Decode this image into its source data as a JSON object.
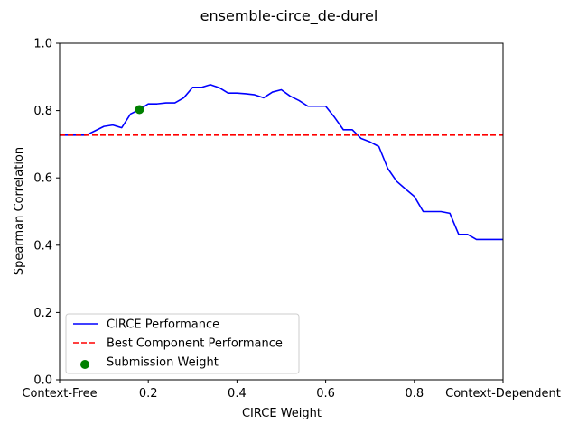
{
  "chart_data": {
    "type": "line",
    "title": "ensemble-circe_de-durel",
    "xlabel": "CIRCE Weight",
    "ylabel": "Spearman Correlation",
    "xlim": [
      0,
      1
    ],
    "ylim": [
      0,
      1
    ],
    "x_ticks": [
      {
        "value": 0,
        "label": "Context-Free"
      },
      {
        "value": 0.2,
        "label": "0.2"
      },
      {
        "value": 0.4,
        "label": "0.4"
      },
      {
        "value": 0.6,
        "label": "0.6"
      },
      {
        "value": 0.8,
        "label": "0.8"
      },
      {
        "value": 1.0,
        "label": "Context-Dependent"
      }
    ],
    "y_ticks": [
      {
        "value": 0,
        "label": "0.0"
      },
      {
        "value": 0.2,
        "label": "0.2"
      },
      {
        "value": 0.4,
        "label": "0.4"
      },
      {
        "value": 0.6,
        "label": "0.6"
      },
      {
        "value": 0.8,
        "label": "0.8"
      },
      {
        "value": 1.0,
        "label": "1.0"
      }
    ],
    "grid": false,
    "legend_position": "lower-left",
    "series": [
      {
        "name": "CIRCE Performance",
        "style": "line",
        "color": "#0000ff",
        "x": [
          0,
          0.02,
          0.04,
          0.06,
          0.08,
          0.1,
          0.12,
          0.14,
          0.16,
          0.18,
          0.2,
          0.22,
          0.24,
          0.26,
          0.28,
          0.3,
          0.32,
          0.34,
          0.36,
          0.38,
          0.4,
          0.42,
          0.44,
          0.46,
          0.48,
          0.5,
          0.52,
          0.54,
          0.56,
          0.58,
          0.6,
          0.62,
          0.64,
          0.66,
          0.68,
          0.7,
          0.72,
          0.74,
          0.76,
          0.78,
          0.8,
          0.82,
          0.84,
          0.86,
          0.88,
          0.9,
          0.92,
          0.94,
          0.96,
          0.98,
          1.0
        ],
        "y": [
          0.727,
          0.727,
          0.727,
          0.727,
          0.74,
          0.753,
          0.757,
          0.749,
          0.79,
          0.803,
          0.82,
          0.82,
          0.823,
          0.823,
          0.838,
          0.869,
          0.869,
          0.877,
          0.868,
          0.852,
          0.852,
          0.85,
          0.847,
          0.838,
          0.855,
          0.862,
          0.843,
          0.83,
          0.813,
          0.813,
          0.813,
          0.78,
          0.743,
          0.743,
          0.717,
          0.707,
          0.693,
          0.628,
          0.59,
          0.567,
          0.545,
          0.5,
          0.5,
          0.5,
          0.495,
          0.432,
          0.432,
          0.417,
          0.417,
          0.417,
          0.417
        ]
      },
      {
        "name": "Best Component Performance",
        "style": "dashed-hline",
        "color": "#ff0000",
        "y": 0.727
      },
      {
        "name": "Submission Weight",
        "style": "scatter",
        "color": "#008000",
        "x": [
          0.18
        ],
        "y": [
          0.803
        ]
      }
    ]
  }
}
